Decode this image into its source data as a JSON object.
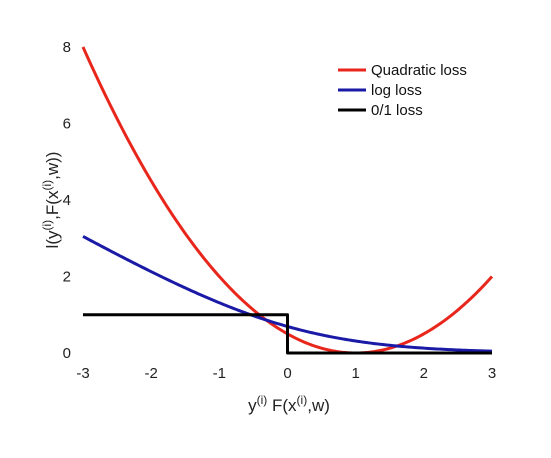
{
  "chart_data": {
    "type": "line",
    "xlabel": {
      "base": "y",
      "sup1": "(i)",
      "mid": " F(x",
      "sup2": "(i)",
      "end": ",w)"
    },
    "ylabel": {
      "base": "l(y",
      "sup1": "(i)",
      "mid": ",F(x",
      "sup2": "(i)",
      "end": ",w))"
    },
    "xlim": [
      -3,
      3
    ],
    "ylim": [
      0,
      8
    ],
    "xticks": [
      -3,
      -2,
      -1,
      0,
      1,
      2,
      3
    ],
    "yticks": [
      0,
      2,
      4,
      6,
      8
    ],
    "xtick_labels": [
      "-3",
      "-2",
      "-1",
      "0",
      "1",
      "2",
      "3"
    ],
    "ytick_labels": [
      "0",
      "2",
      "4",
      "6",
      "8"
    ],
    "grid": false,
    "legend_position": "top-right",
    "series": [
      {
        "name": "Quadratic loss",
        "color": "#e8261c",
        "x": [
          -3,
          -2.5,
          -2,
          -1.5,
          -1,
          -0.5,
          0,
          0.5,
          1,
          1.5,
          2,
          2.5,
          3
        ],
        "y": [
          8,
          6.25,
          4.5,
          3.125,
          2,
          1.125,
          0.5,
          0.125,
          0,
          0.125,
          0.5,
          1.125,
          2
        ]
      },
      {
        "name": "log loss",
        "color": "#1a1aa6",
        "x": [
          -3,
          -2.5,
          -2,
          -1.5,
          -1,
          -0.5,
          0,
          0.5,
          1,
          1.5,
          2,
          2.5,
          3
        ],
        "y": [
          3.05,
          2.58,
          2.13,
          1.7,
          1.31,
          0.97,
          0.69,
          0.47,
          0.31,
          0.2,
          0.13,
          0.08,
          0.05
        ]
      },
      {
        "name": "0/1 loss",
        "color": "#000000",
        "x": [
          -3,
          0,
          0,
          3
        ],
        "y": [
          1,
          1,
          0,
          0
        ]
      }
    ]
  }
}
